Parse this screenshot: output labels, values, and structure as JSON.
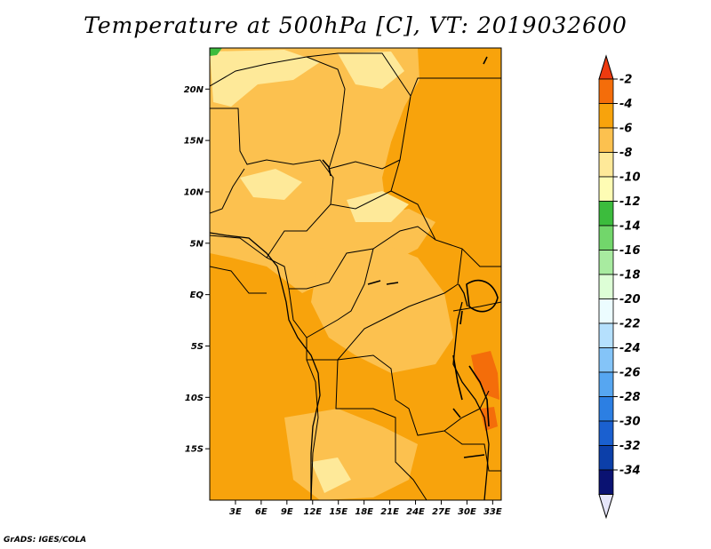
{
  "title": "Temperature at 500hPa [C], VT: 2019032600",
  "credit": "GrADS: IGES/COLA",
  "map": {
    "lat_range": [
      -20,
      24
    ],
    "lon_range": [
      0,
      34
    ],
    "lat_ticks": [
      {
        "value": 20,
        "label": "20N"
      },
      {
        "value": 15,
        "label": "15N"
      },
      {
        "value": 10,
        "label": "10N"
      },
      {
        "value": 5,
        "label": "5N"
      },
      {
        "value": 0,
        "label": "EQ"
      },
      {
        "value": -5,
        "label": "5S"
      },
      {
        "value": -10,
        "label": "10S"
      },
      {
        "value": -15,
        "label": "15S"
      }
    ],
    "lon_ticks": [
      {
        "value": 3,
        "label": "3E"
      },
      {
        "value": 6,
        "label": "6E"
      },
      {
        "value": 9,
        "label": "9E"
      },
      {
        "value": 12,
        "label": "12E"
      },
      {
        "value": 15,
        "label": "15E"
      },
      {
        "value": 18,
        "label": "18E"
      },
      {
        "value": 21,
        "label": "21E"
      },
      {
        "value": 24,
        "label": "24E"
      },
      {
        "value": 27,
        "label": "27E"
      },
      {
        "value": 30,
        "label": "30E"
      },
      {
        "value": 33,
        "label": "33E"
      }
    ],
    "fill_colors": {
      "below_minus12": "#3cbc3d",
      "minus10_to_minus8": "#fee999",
      "minus8_to_minus6": "#fcc14f",
      "minus6_to_minus4": "#f8a30c",
      "minus4_to_minus2": "#f46d0a"
    }
  },
  "colorbar": {
    "labels": [
      "-2",
      "-4",
      "-6",
      "-8",
      "-10",
      "-12",
      "-14",
      "-16",
      "-18",
      "-20",
      "-22",
      "-24",
      "-26",
      "-28",
      "-30",
      "-32",
      "-34"
    ],
    "top_arrow_color": "#ee3a0f",
    "bottom_arrow_color": "#e6e6fa",
    "colors": [
      "#f46d0a",
      "#f8a30c",
      "#fcc14f",
      "#fee999",
      "#fefcb4",
      "#3cbc3d",
      "#72d66b",
      "#a8eba0",
      "#ddfed6",
      "#ecfcff",
      "#b5e0fd",
      "#84c4f8",
      "#56a6f1",
      "#2c7fe3",
      "#1a60d0",
      "#0c3fa9",
      "#0a1272"
    ]
  }
}
